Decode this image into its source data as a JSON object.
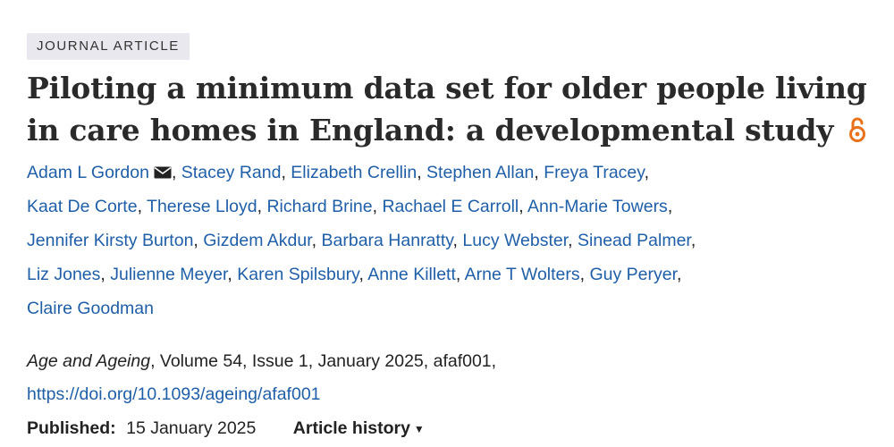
{
  "badge": "JOURNAL ARTICLE",
  "title": {
    "line1": "Piloting a minimum data set for older people living",
    "line2": "in care homes in England: a developmental study"
  },
  "icons": {
    "open_access": "open-access-lock-icon",
    "corresponding_author": "envelope-icon",
    "dropdown": "caret-down-icon"
  },
  "colors": {
    "link": "#1f5fa8",
    "open_access": "#e8711a",
    "badge_bg": "#e8e8ee"
  },
  "authors": [
    "Adam L Gordon",
    "Stacey Rand",
    "Elizabeth Crellin",
    "Stephen Allan",
    "Freya Tracey",
    "Kaat De Corte",
    "Therese Lloyd",
    "Richard Brine",
    "Rachael E Carroll",
    "Ann-Marie Towers",
    "Jennifer Kirsty Burton",
    "Gizdem Akdur",
    "Barbara Hanratty",
    "Lucy Webster",
    "Sinead Palmer",
    "Liz Jones",
    "Julienne Meyer",
    "Karen Spilsbury",
    "Anne Killett",
    "Arne T Wolters",
    "Guy Peryer",
    "Claire Goodman"
  ],
  "citation": {
    "journal": "Age and Ageing",
    "details": ", Volume 54, Issue 1, January 2025, afaf001,",
    "doi": "https://doi.org/10.1093/ageing/afaf001"
  },
  "published": {
    "label": "Published:",
    "date": "15 January 2025",
    "history_label": "Article history",
    "caret": "▼"
  }
}
